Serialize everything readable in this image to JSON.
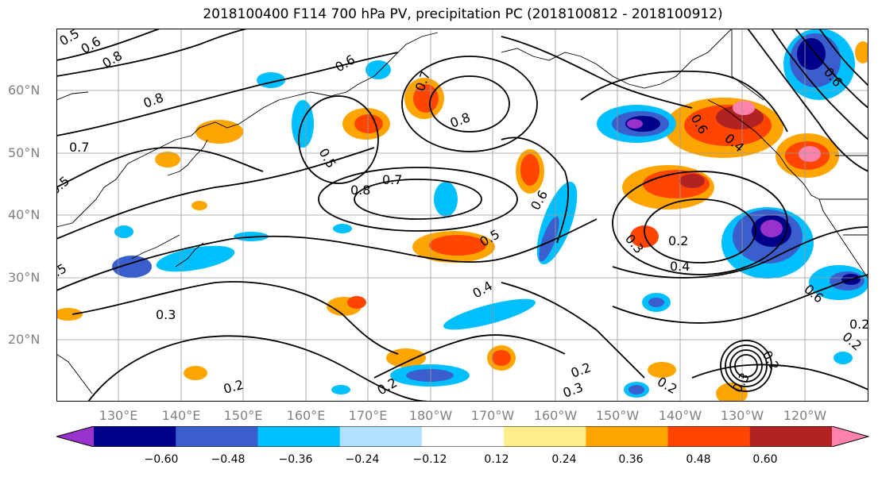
{
  "title": "2018100400 F114 700 hPa PV, precipitation PC (2018100812 - 2018100912)",
  "lat_labels": [
    "60°N",
    "50°N",
    "40°N",
    "30°N",
    "20°N"
  ],
  "lon_labels": [
    "130°E",
    "140°E",
    "150°E",
    "160°E",
    "170°E",
    "180°W",
    "170°W",
    "160°W",
    "150°W",
    "140°W",
    "130°W",
    "120°W"
  ],
  "colorbar": {
    "ticks": [
      "−0.60",
      "−0.48",
      "−0.36",
      "−0.24",
      "−0.12",
      "0.12",
      "0.24",
      "0.36",
      "0.48",
      "0.60"
    ],
    "colors": [
      "#9932cc",
      "#00008b",
      "#3a5fcd",
      "#00bfff",
      "#b0e2ff",
      "#ffffff",
      "#ffec8b",
      "#ffa500",
      "#ff4500",
      "#b22222",
      "#ff82ab"
    ]
  },
  "contour_labels": [
    "0.5",
    "0.6",
    "0.8",
    "0.8",
    "0.7",
    "0.5",
    "0.6",
    "0.8",
    "0.5",
    "0.8",
    "0.7",
    "0.7",
    "0.6",
    "0.5",
    "0.3",
    "0.2",
    "0.4",
    "0.6",
    "0.5",
    "0.4",
    "0.3",
    "0.2",
    "0.2",
    "0.2",
    "0.3",
    "0.2",
    "0.2",
    "0.3",
    "0.2",
    "0.6",
    "0.4",
    "0.6",
    "0.2"
  ]
}
